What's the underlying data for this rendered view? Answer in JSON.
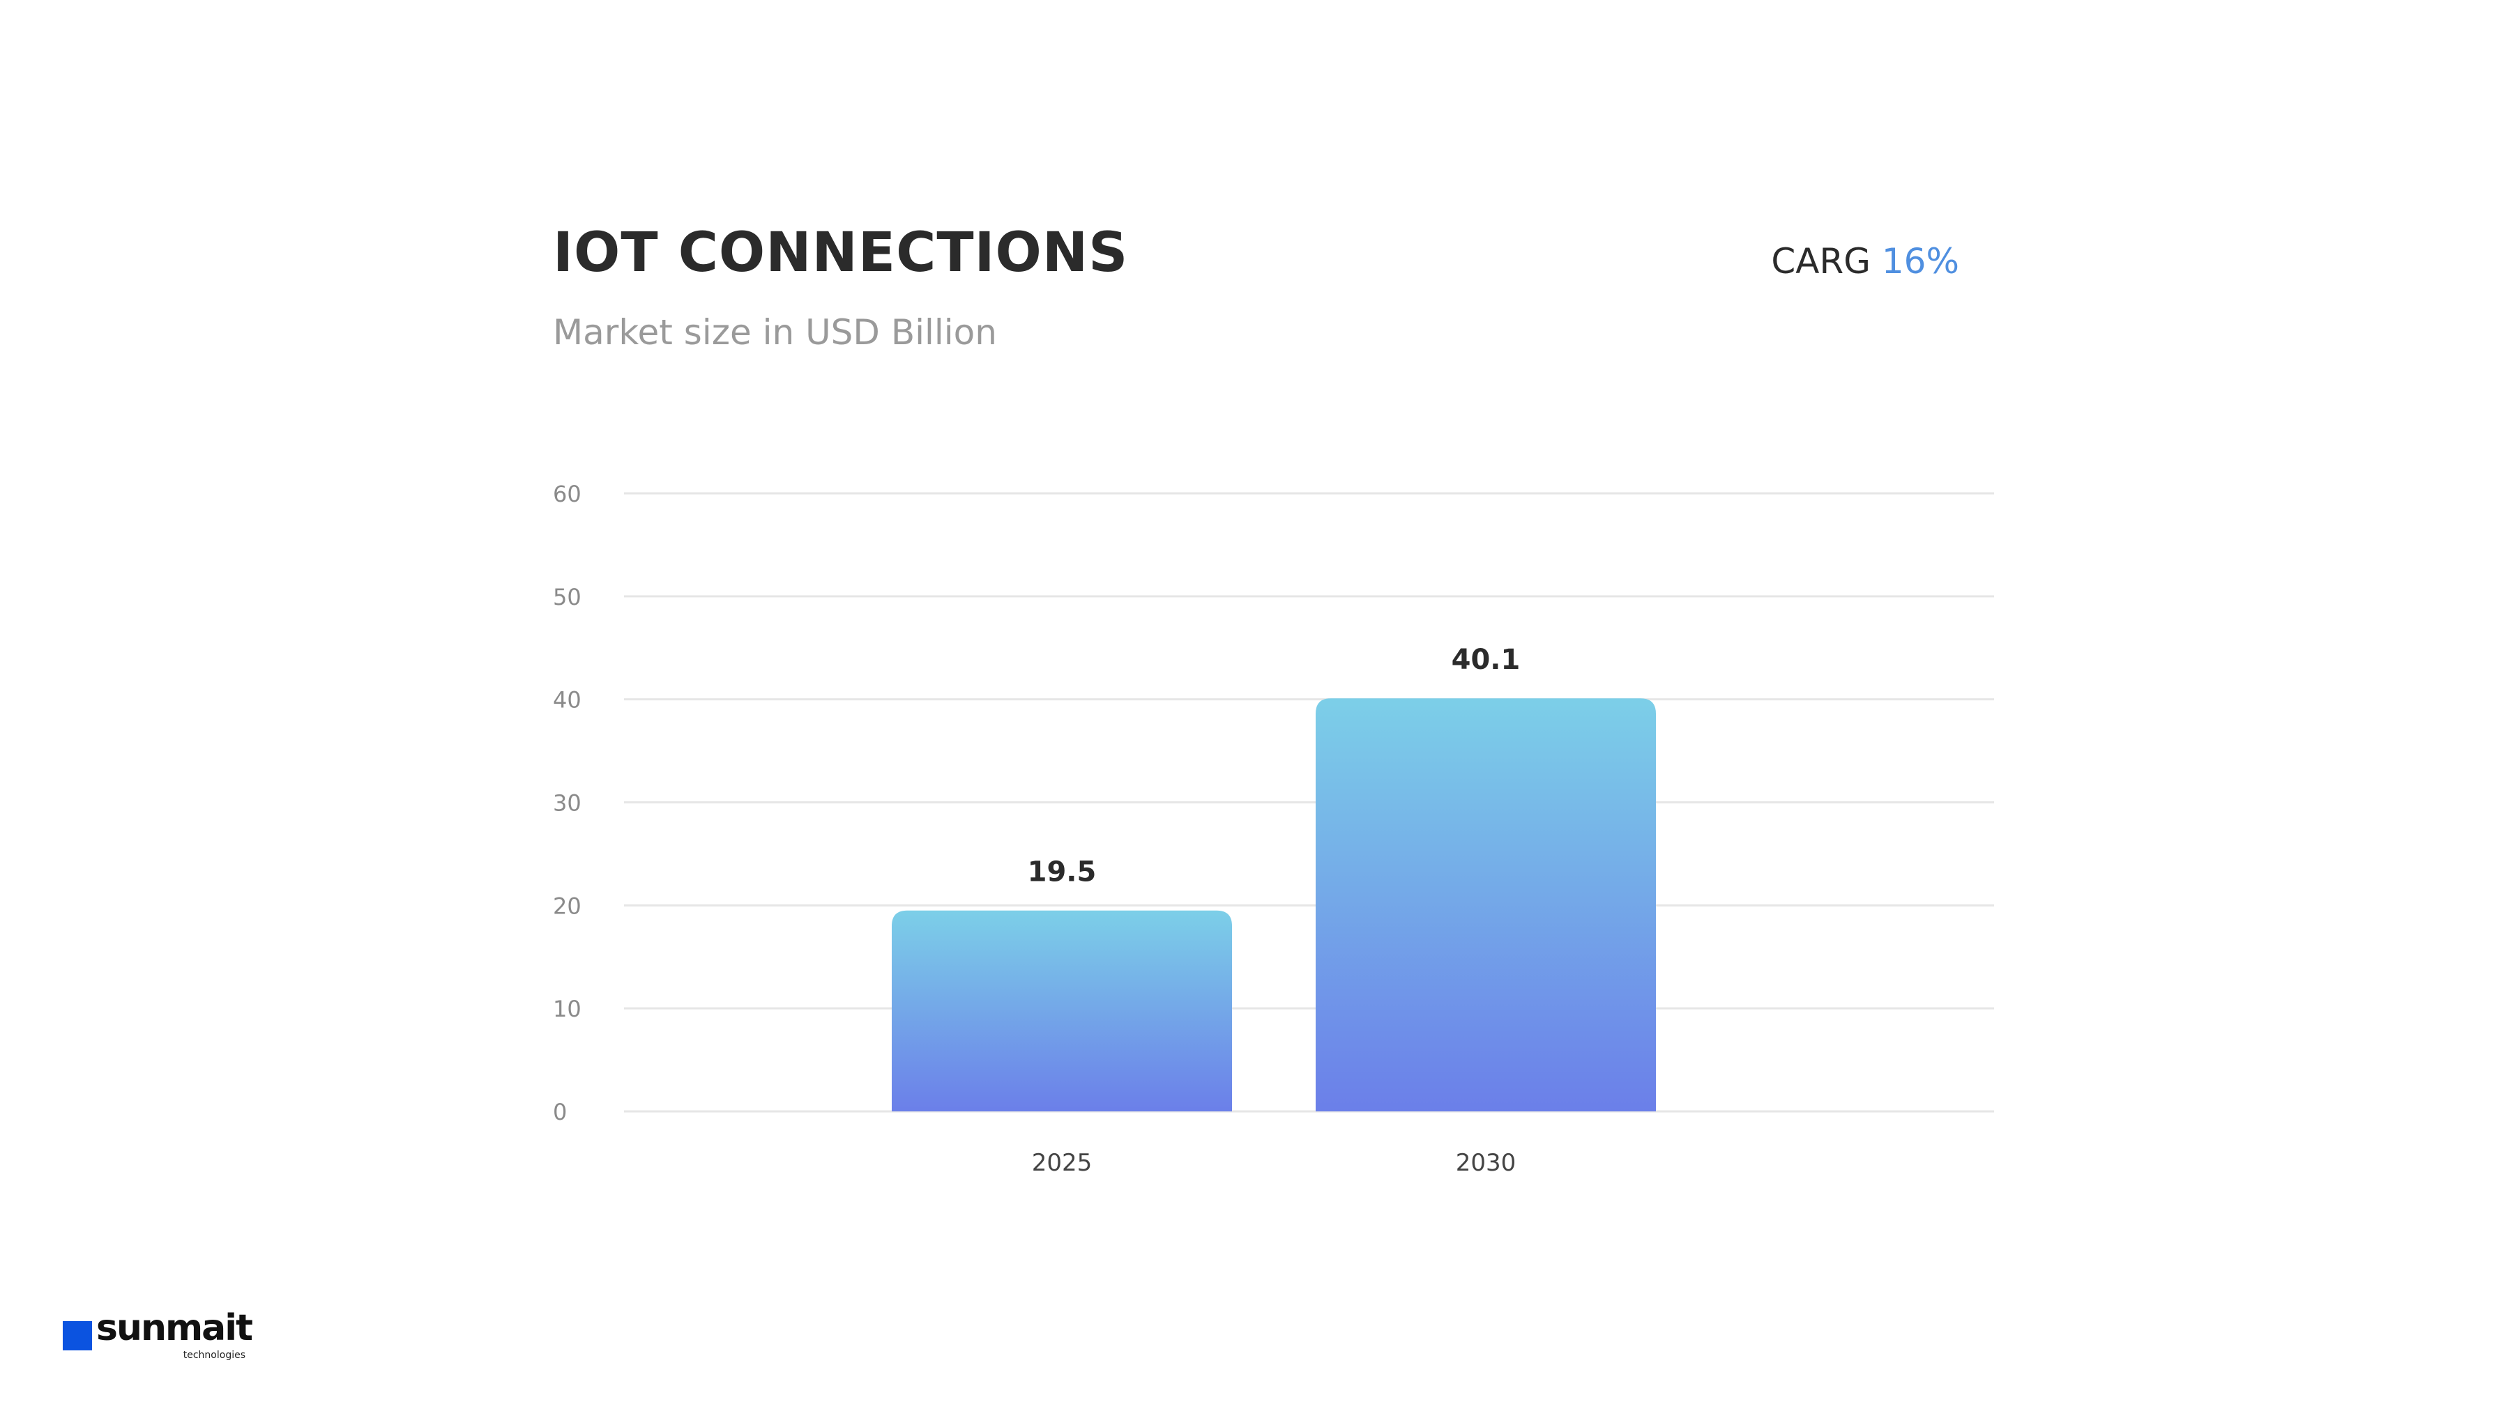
{
  "header": {
    "title": "IOT CONNECTIONS",
    "subtitle": "Market size in USD Billion",
    "carg_label": "CARG",
    "carg_value": "16%"
  },
  "colors": {
    "bar_top": "#7ccfe8",
    "bar_bottom": "#6b7fe9",
    "grid": "#e6e6e6",
    "accent": "#4f8fe0",
    "logo_square": "#0b53e0"
  },
  "chart_data": {
    "type": "bar",
    "categories": [
      "2025",
      "2030"
    ],
    "values": [
      19.5,
      40.1
    ],
    "data_labels": [
      "19.5",
      "40.1"
    ],
    "title": "IOT CONNECTIONS",
    "subtitle": "Market size in USD Billion",
    "xlabel": "",
    "ylabel": "",
    "ylim": [
      0,
      60
    ],
    "yticks": [
      0,
      10,
      20,
      30,
      40,
      50,
      60
    ],
    "grid": true,
    "legend": "none"
  },
  "logo": {
    "name": "sunmait",
    "tagline": "technologies"
  }
}
